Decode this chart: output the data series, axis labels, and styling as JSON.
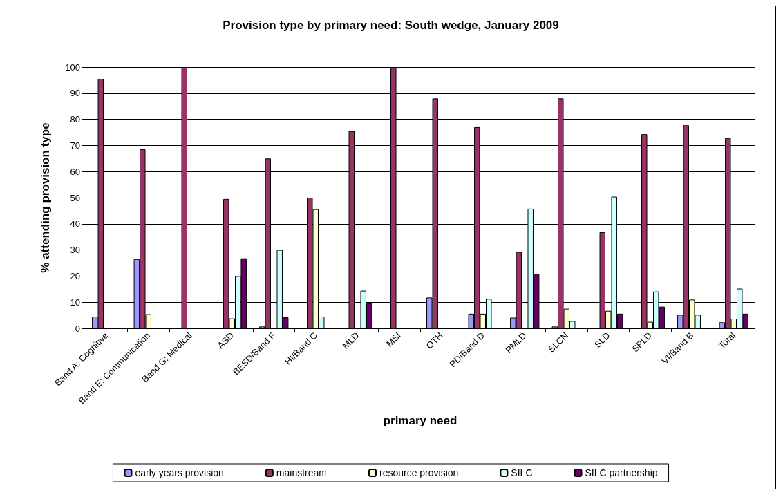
{
  "chart_data": {
    "type": "bar",
    "title": "Provision type by primary need: South wedge, January 2009",
    "xlabel": "primary need",
    "ylabel": "% attending provision type",
    "categories": [
      "Band A: Cognitive",
      "Band E: Communication",
      "Band G: Medical",
      "ASD",
      "BESD/Band F",
      "HI/Band C",
      "MLD",
      "MSI",
      "OTH",
      "PD/Band D",
      "PMLD",
      "SLCN",
      "SLD",
      "SPLD",
      "VI/Band B",
      "Total"
    ],
    "series": [
      {
        "name": "early years provision",
        "color": "#9999ff",
        "values": [
          4.5,
          26.5,
          null,
          null,
          0.7,
          null,
          null,
          null,
          11.8,
          5.6,
          4.1,
          0.7,
          null,
          null,
          5.2,
          2.3
        ]
      },
      {
        "name": "mainstream",
        "color": "#993366",
        "values": [
          95.5,
          68.5,
          100,
          49.5,
          65,
          50,
          75.5,
          100,
          88,
          77,
          29.2,
          88,
          36.8,
          74.3,
          77.7,
          72.8
        ]
      },
      {
        "name": "resource provision",
        "color": "#ffffcc",
        "values": [
          null,
          5.4,
          null,
          3.8,
          null,
          45.6,
          null,
          null,
          null,
          5.6,
          null,
          7.5,
          6.7,
          2.5,
          11,
          3.7
        ]
      },
      {
        "name": "SILC",
        "color": "#ccffff",
        "values": [
          null,
          null,
          null,
          20,
          30,
          4.5,
          14.4,
          null,
          null,
          11.3,
          45.8,
          2.8,
          50.4,
          14.1,
          5.2,
          15.2
        ]
      },
      {
        "name": "SILC partnership",
        "color": "#660066",
        "values": [
          null,
          null,
          null,
          26.8,
          4.2,
          null,
          9.5,
          null,
          null,
          null,
          20.7,
          null,
          5.6,
          8.3,
          null,
          5.6
        ]
      }
    ],
    "ylim": [
      0,
      100
    ],
    "yticks": [
      0,
      10,
      20,
      30,
      40,
      50,
      60,
      70,
      80,
      90,
      100
    ],
    "grid": "y",
    "legend": "bottom"
  }
}
